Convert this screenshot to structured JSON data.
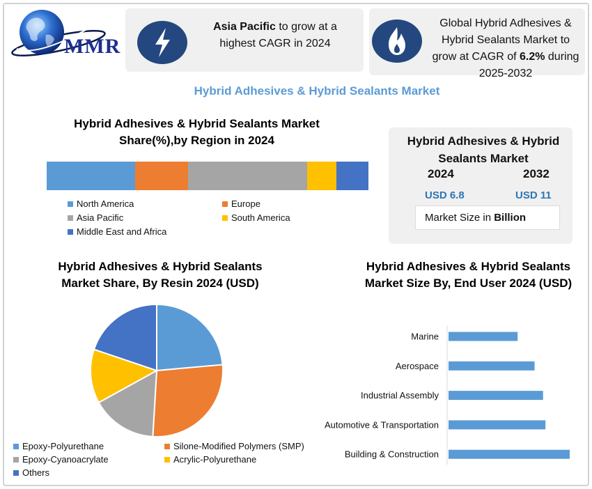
{
  "brand": {
    "logo_text": "MMR"
  },
  "cards": {
    "card1": {
      "highlight": "Asia Pacific",
      "rest": " to grow at a highest CAGR in 2024",
      "icon": "lightning-icon"
    },
    "card2": {
      "pre": "Global Hybrid Adhesives & Hybrid Sealants Market to grow at CAGR of ",
      "highlight": "6.2%",
      "post": " during 2025-2032",
      "icon": "flame-icon"
    }
  },
  "main_title": "Hybrid Adhesives & Hybrid Sealants Market",
  "market_size": {
    "title": "Hybrid Adhesives & Hybrid Sealants Market",
    "year_start": "2024",
    "year_end": "2032",
    "value_start": "USD 6.8",
    "value_end": "USD 11",
    "unit_pre": "Market Size in ",
    "unit_bold": "Billion"
  },
  "colors": {
    "light_blue": "#5b9bd5",
    "orange": "#ed7d31",
    "gray": "#a5a5a5",
    "yellow": "#ffc000",
    "blue": "#4472c4",
    "icon_bg": "#24477f"
  },
  "chart_data": [
    {
      "id": "region",
      "type": "bar",
      "subtype": "100% stacked",
      "title": "Hybrid Adhesives & Hybrid Sealants Market Share(%),by Region in 2024",
      "series": [
        {
          "name": "North America",
          "value": 27.5
        },
        {
          "name": "Europe",
          "value": 16.5
        },
        {
          "name": "Asia Pacific",
          "value": 37
        },
        {
          "name": "South America",
          "value": 9
        },
        {
          "name": "Middle East and Africa",
          "value": 10
        }
      ],
      "legend": "bottom"
    },
    {
      "id": "resin",
      "type": "pie",
      "title": "Hybrid Adhesives & Hybrid Sealants Market Share, By Resin 2024  (USD)",
      "slices": [
        {
          "name": "Epoxy-Polyurethane",
          "value": 25
        },
        {
          "name": "Silone-Modified Polymers (SMP)",
          "value": 29
        },
        {
          "name": "Epoxy-Cyanoacrylate",
          "value": 17
        },
        {
          "name": "Acrylic-Polyurethane",
          "value": 14
        },
        {
          "name": "Others",
          "value": 21
        }
      ],
      "legend": "bottom"
    },
    {
      "id": "enduser",
      "type": "bar",
      "orientation": "horizontal",
      "title": "Hybrid Adhesives & Hybrid Sealants Market Size By, End User  2024 (USD)",
      "categories": [
        "Marine",
        "Aerospace",
        "Industrial Assembly",
        "Automotive & Transportation",
        "Building & Construction"
      ],
      "values": [
        57,
        71,
        78,
        80,
        100
      ],
      "xlim": [
        0,
        100
      ]
    }
  ]
}
